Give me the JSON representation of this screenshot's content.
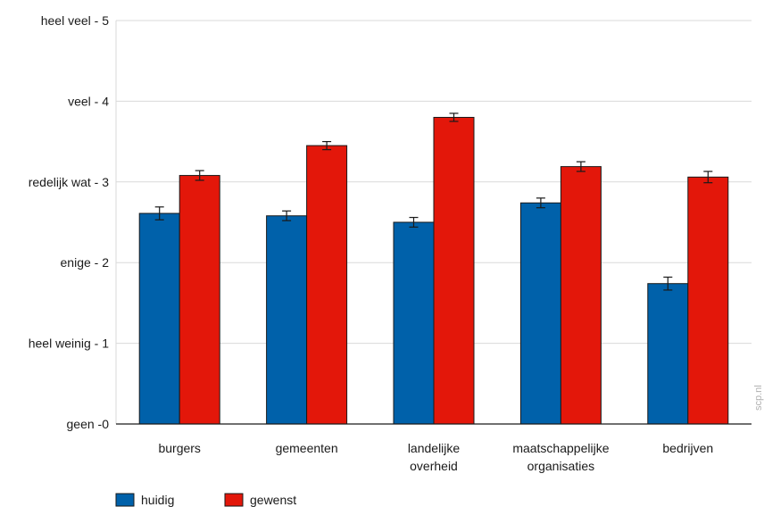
{
  "chart_data": {
    "type": "bar",
    "categories": [
      [
        "burgers"
      ],
      [
        "gemeenten"
      ],
      [
        "landelijke",
        "overheid"
      ],
      [
        "maatschappelijke",
        "organisaties"
      ],
      [
        "bedrijven"
      ]
    ],
    "series": [
      {
        "name": "huidig",
        "color": "#0061aa",
        "values": [
          2.61,
          2.58,
          2.5,
          2.74,
          1.74
        ],
        "errors": [
          0.08,
          0.06,
          0.06,
          0.06,
          0.08
        ]
      },
      {
        "name": "gewenst",
        "color": "#e3170a",
        "values": [
          3.08,
          3.45,
          3.8,
          3.19,
          3.06
        ],
        "errors": [
          0.06,
          0.05,
          0.05,
          0.06,
          0.07
        ]
      }
    ],
    "yticks": [
      {
        "value": 0,
        "label": "geen -0"
      },
      {
        "value": 1,
        "label": "heel weinig - 1"
      },
      {
        "value": 2,
        "label": "enige - 2"
      },
      {
        "value": 3,
        "label": "redelijk wat - 3"
      },
      {
        "value": 4,
        "label": "veel - 4"
      },
      {
        "value": 5,
        "label": "heel veel - 5"
      }
    ],
    "ylim": [
      0,
      5
    ],
    "grid": true,
    "legend_position": "bottom-left",
    "watermark": "scp.nl"
  }
}
